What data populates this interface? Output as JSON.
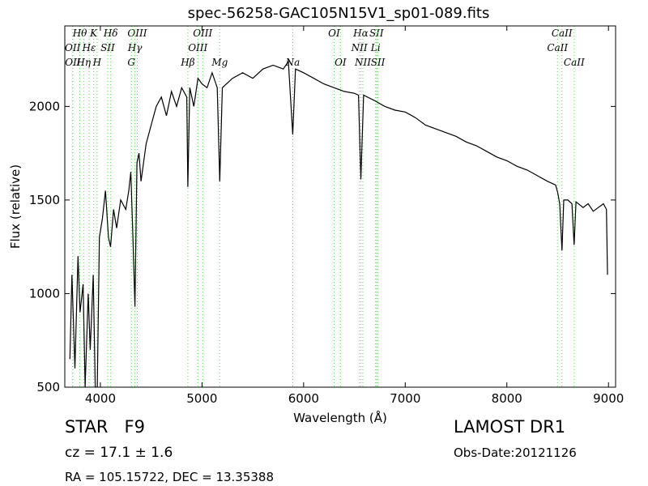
{
  "chart_data": {
    "type": "line",
    "title": "spec-56258-GAC105N15V1_sp01-089.fits",
    "x_label": "Wavelength (Å)",
    "y_label": "Flux (relative)",
    "xlim": [
      3650,
      9070
    ],
    "ylim": [
      500,
      2430
    ],
    "xticks": [
      4000,
      5000,
      6000,
      7000,
      8000,
      9000
    ],
    "yticks": [
      500,
      1000,
      1500,
      2000
    ],
    "color": "#000000",
    "line_color": "#66cc66",
    "x": [
      3700,
      3720,
      3750,
      3780,
      3800,
      3830,
      3850,
      3880,
      3900,
      3930,
      3950,
      3970,
      3990,
      4020,
      4050,
      4080,
      4100,
      4130,
      4160,
      4200,
      4250,
      4280,
      4300,
      4320,
      4340,
      4360,
      4380,
      4400,
      4450,
      4500,
      4550,
      4600,
      4650,
      4700,
      4750,
      4800,
      4850,
      4861,
      4880,
      4920,
      4960,
      5000,
      5050,
      5100,
      5150,
      5175,
      5200,
      5300,
      5400,
      5500,
      5600,
      5700,
      5800,
      5850,
      5893,
      5920,
      6000,
      6100,
      6200,
      6300,
      6400,
      6500,
      6540,
      6563,
      6590,
      6700,
      6800,
      6900,
      7000,
      7100,
      7200,
      7300,
      7400,
      7500,
      7600,
      7700,
      7800,
      7900,
      8000,
      8100,
      8200,
      8300,
      8400,
      8480,
      8500,
      8520,
      8542,
      8560,
      8600,
      8640,
      8662,
      8680,
      8750,
      8800,
      8850,
      8900,
      8950,
      8980,
      8990
    ],
    "values": [
      650,
      1100,
      600,
      1200,
      900,
      1050,
      500,
      1000,
      700,
      1100,
      500,
      500,
      1300,
      1400,
      1550,
      1300,
      1250,
      1450,
      1350,
      1500,
      1450,
      1550,
      1650,
      1300,
      930,
      1700,
      1750,
      1600,
      1800,
      1900,
      2000,
      2050,
      1950,
      2080,
      2000,
      2100,
      2050,
      1570,
      2100,
      2000,
      2150,
      2120,
      2100,
      2180,
      2100,
      1600,
      2100,
      2150,
      2180,
      2150,
      2200,
      2220,
      2200,
      2240,
      1850,
      2200,
      2180,
      2150,
      2120,
      2100,
      2080,
      2070,
      2060,
      1610,
      2060,
      2030,
      2000,
      1980,
      1970,
      1940,
      1900,
      1880,
      1860,
      1840,
      1810,
      1790,
      1760,
      1730,
      1710,
      1680,
      1660,
      1630,
      1600,
      1580,
      1540,
      1480,
      1230,
      1500,
      1500,
      1480,
      1260,
      1490,
      1460,
      1480,
      1440,
      1460,
      1480,
      1450,
      1100
    ],
    "lines": [
      {
        "label": "Hθ",
        "wavelength": 3798
      },
      {
        "label": "K",
        "wavelength": 3934
      },
      {
        "label": "Hδ",
        "wavelength": 4102
      },
      {
        "label": "OIII",
        "wavelength": 4363
      },
      {
        "label": "OIII",
        "wavelength": 5007
      },
      {
        "label": "OI",
        "wavelength": 6300
      },
      {
        "label": "Hα",
        "wavelength": 6563
      },
      {
        "label": "SII",
        "wavelength": 6717
      },
      {
        "label": "CaII",
        "wavelength": 8542
      },
      {
        "label": "OII",
        "wavelength": 3727
      },
      {
        "label": "Hε",
        "wavelength": 3889
      },
      {
        "label": "SII",
        "wavelength": 4072
      },
      {
        "label": "Hγ",
        "wavelength": 4340
      },
      {
        "label": "OIII",
        "wavelength": 4959
      },
      {
        "label": "NII",
        "wavelength": 6548
      },
      {
        "label": "Li",
        "wavelength": 6708
      },
      {
        "label": "CaII",
        "wavelength": 8498
      },
      {
        "label": "OII",
        "wavelength": 3729
      },
      {
        "label": "Hη",
        "wavelength": 3835
      },
      {
        "label": "H",
        "wavelength": 3968
      },
      {
        "label": "G",
        "wavelength": 4305
      },
      {
        "label": "Hβ",
        "wavelength": 4861
      },
      {
        "label": "Mg",
        "wavelength": 5175
      },
      {
        "label": "Na",
        "wavelength": 5893
      },
      {
        "label": "OI",
        "wavelength": 6363
      },
      {
        "label": "NII",
        "wavelength": 6583
      },
      {
        "label": "SII",
        "wavelength": 6731
      },
      {
        "label": "CaII",
        "wavelength": 8662
      }
    ],
    "info": {
      "object": "STAR   F9",
      "cz": "cz = 17.1 ± 1.6",
      "coords": "RA = 105.15722, DEC = 13.35388",
      "survey": "LAMOST DR1",
      "date": "Obs-Date:20121126"
    }
  }
}
